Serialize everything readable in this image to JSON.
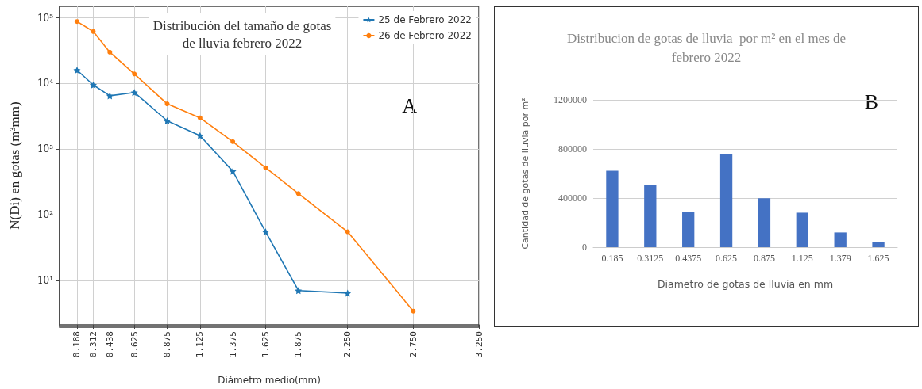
{
  "chart_data": [
    {
      "type": "line",
      "title": "Distribución del tamaño de gotas\nde lluvia febrero 2022",
      "xlabel": "Diámetro medio(mm)",
      "ylabel": "N(Di) en gotas (m³mm)",
      "series": [
        {
          "name": "25 de Febrero 2022",
          "color": "#1f77b4",
          "marker": "star",
          "x": [
            0.188,
            0.312,
            0.438,
            0.625,
            0.875,
            1.125,
            1.375,
            1.625,
            1.875,
            2.25
          ],
          "values": [
            16000,
            9500,
            6500,
            7300,
            2700,
            1600,
            460,
            55,
            7,
            6.4
          ]
        },
        {
          "name": "26 de Febrero 2022",
          "color": "#ff7f0e",
          "marker": "circle",
          "x": [
            0.188,
            0.312,
            0.438,
            0.625,
            0.875,
            1.125,
            1.375,
            1.625,
            1.875,
            2.25,
            2.75
          ],
          "values": [
            88000,
            62000,
            30000,
            14000,
            4900,
            3000,
            1300,
            520,
            210,
            55,
            3.4
          ]
        }
      ],
      "log": "y",
      "xlim": [
        0.055,
        3.25
      ],
      "xticks": [
        0.188,
        0.312,
        0.438,
        0.625,
        0.875,
        1.125,
        1.375,
        1.625,
        1.875,
        {
          "value": 2.25,
          "label": "2.250"
        },
        {
          "value": 2.75,
          "label": "2.750"
        },
        {
          "value": 3.25,
          "label": "3.250"
        }
      ],
      "ylim": [
        2.1,
        150000
      ],
      "yticks": [
        {
          "value": 10,
          "label": "10¹"
        },
        {
          "value": 100,
          "label": "10²"
        },
        {
          "value": 1000,
          "label": "10³"
        },
        {
          "value": 10000,
          "label": "10⁴"
        },
        {
          "value": 100000,
          "label": "10⁵"
        }
      ],
      "grid": true,
      "legend": "top right",
      "line_style": "solid",
      "annotations": [
        "A"
      ]
    },
    {
      "type": "bar",
      "title": "Distribucion de gotas de lluvia  por m² en el mes de\nfebrero 2022",
      "xlabel": "Diametro de gotas de lluvia en mm",
      "ylabel": "Cantidad de gotas de lluvia por m²",
      "categories": [
        "0.185",
        "0.3125",
        "0.4375",
        "0.625",
        "0.875",
        "1.125",
        "1.379",
        "1.625"
      ],
      "values": [
        622000,
        507000,
        290000,
        755000,
        398000,
        281000,
        120000,
        42000
      ],
      "color": "#4472c4",
      "ylim": [
        0,
        1200000
      ],
      "yticks": [
        0,
        400000,
        800000,
        1200000
      ],
      "grid": "y",
      "annotations": [
        "B"
      ]
    }
  ]
}
